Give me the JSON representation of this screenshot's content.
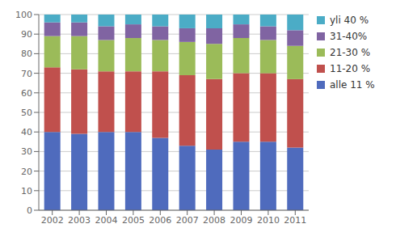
{
  "chart_data": {
    "type": "bar",
    "stacked": true,
    "categories": [
      "2002",
      "2003",
      "2004",
      "2005",
      "2006",
      "2007",
      "2008",
      "2009",
      "2010",
      "2011"
    ],
    "series": [
      {
        "name": "alle 11 %",
        "color": "#4f6bbd",
        "values": [
          40,
          39,
          40,
          40,
          37,
          33,
          31,
          35,
          35,
          32
        ]
      },
      {
        "name": "11-20 %",
        "color": "#c0504d",
        "values": [
          33,
          33,
          31,
          31,
          34,
          36,
          36,
          35,
          35,
          35
        ]
      },
      {
        "name": "21-30 %",
        "color": "#9bbb59",
        "values": [
          16,
          17,
          16,
          17,
          16,
          17,
          18,
          18,
          17,
          17
        ]
      },
      {
        "name": "31-40%",
        "color": "#8064a2",
        "values": [
          7,
          7,
          7,
          7,
          7,
          7,
          8,
          7,
          7,
          8
        ]
      },
      {
        "name": "yli 40 %",
        "color": "#4bacc6",
        "values": [
          4,
          4,
          6,
          5,
          6,
          7,
          7,
          5,
          6,
          8
        ]
      }
    ],
    "ylim": [
      0,
      100
    ],
    "yticks": [
      0,
      10,
      20,
      30,
      40,
      50,
      60,
      70,
      80,
      90,
      100
    ],
    "grid": true,
    "legend": "right"
  }
}
